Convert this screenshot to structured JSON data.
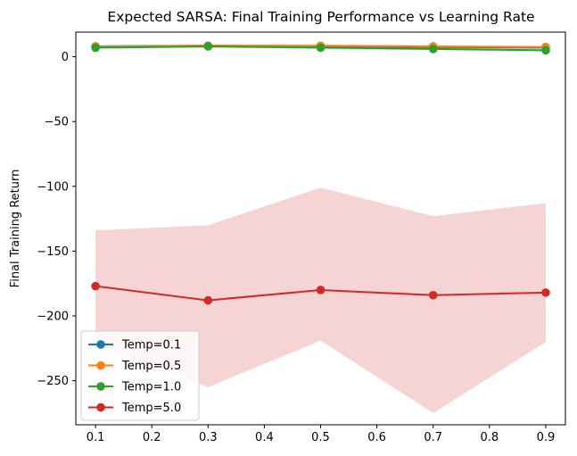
{
  "chart_data": {
    "type": "line",
    "title": "Expected SARSA: Final Training Performance vs Learning Rate",
    "xlabel": "",
    "ylabel": "Final Training Return",
    "x": [
      0.1,
      0.3,
      0.5,
      0.7,
      0.9
    ],
    "xlim": [
      0.065,
      0.935
    ],
    "ylim": [
      -284,
      19
    ],
    "x_ticks": [
      0.1,
      0.2,
      0.3,
      0.4,
      0.5,
      0.6,
      0.7,
      0.8,
      0.9
    ],
    "x_tick_labels": [
      "0.1",
      "0.2",
      "0.3",
      "0.4",
      "0.5",
      "0.6",
      "0.7",
      "0.8",
      "0.9"
    ],
    "y_ticks": [
      0,
      -50,
      -100,
      -150,
      -200,
      -250
    ],
    "y_tick_labels": [
      "0",
      "−50",
      "−100",
      "−150",
      "−200",
      "−250"
    ],
    "grid": false,
    "legend_position": "lower-left",
    "series": [
      {
        "name": "Temp=0.1",
        "color": "#1f77b4",
        "values": [
          8,
          8.5,
          8,
          7.5,
          7
        ],
        "band_low": [
          7,
          7.5,
          7,
          6.5,
          6
        ],
        "band_high": [
          9,
          9.5,
          9,
          8.5,
          8
        ]
      },
      {
        "name": "Temp=0.5",
        "color": "#ff7f0e",
        "values": [
          8,
          8.5,
          8.5,
          8,
          7.5
        ],
        "band_low": [
          7,
          7.5,
          7.5,
          7,
          6.5
        ],
        "band_high": [
          9,
          9.5,
          9.5,
          9,
          8.5
        ]
      },
      {
        "name": "Temp=1.0",
        "color": "#2ca02c",
        "values": [
          7,
          8,
          7,
          6,
          5
        ],
        "band_low": [
          6,
          7,
          6,
          5,
          4
        ],
        "band_high": [
          8,
          9,
          8,
          7,
          6
        ]
      },
      {
        "name": "Temp=5.0",
        "color": "#d62728",
        "values": [
          -177,
          -188,
          -180,
          -184,
          -182
        ],
        "band_low": [
          -220,
          -255,
          -219,
          -275,
          -220
        ],
        "band_high": [
          -134,
          -130,
          -101,
          -123,
          -113
        ]
      }
    ]
  }
}
